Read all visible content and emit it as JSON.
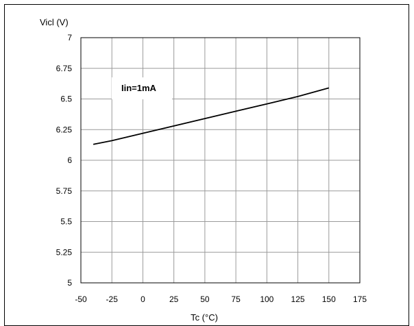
{
  "chart_data": {
    "type": "line",
    "ylabel": "Vicl (V)",
    "xlabel": "Tc (°C)",
    "annotation": "Iin=1mA",
    "xlim": [
      -50,
      175
    ],
    "ylim": [
      5,
      7
    ],
    "x_ticks": [
      -50,
      -25,
      0,
      25,
      50,
      75,
      100,
      125,
      150,
      175
    ],
    "y_ticks": [
      5,
      5.25,
      5.5,
      5.75,
      6,
      6.25,
      6.5,
      6.75,
      7
    ],
    "y_tick_labels": [
      "5",
      "5.25",
      "5.5",
      "5.75",
      "6",
      "6.25",
      "6.5",
      "6.75",
      "7"
    ],
    "x_tick_labels": [
      "-50",
      "-25",
      "0",
      "25",
      "50",
      "75",
      "100",
      "125",
      "150",
      "175"
    ],
    "grid": true,
    "series": [
      {
        "x": [
          -40,
          -25,
          0,
          25,
          50,
          75,
          100,
          125,
          150
        ],
        "y": [
          6.13,
          6.16,
          6.22,
          6.28,
          6.34,
          6.4,
          6.46,
          6.52,
          6.59
        ]
      }
    ]
  }
}
